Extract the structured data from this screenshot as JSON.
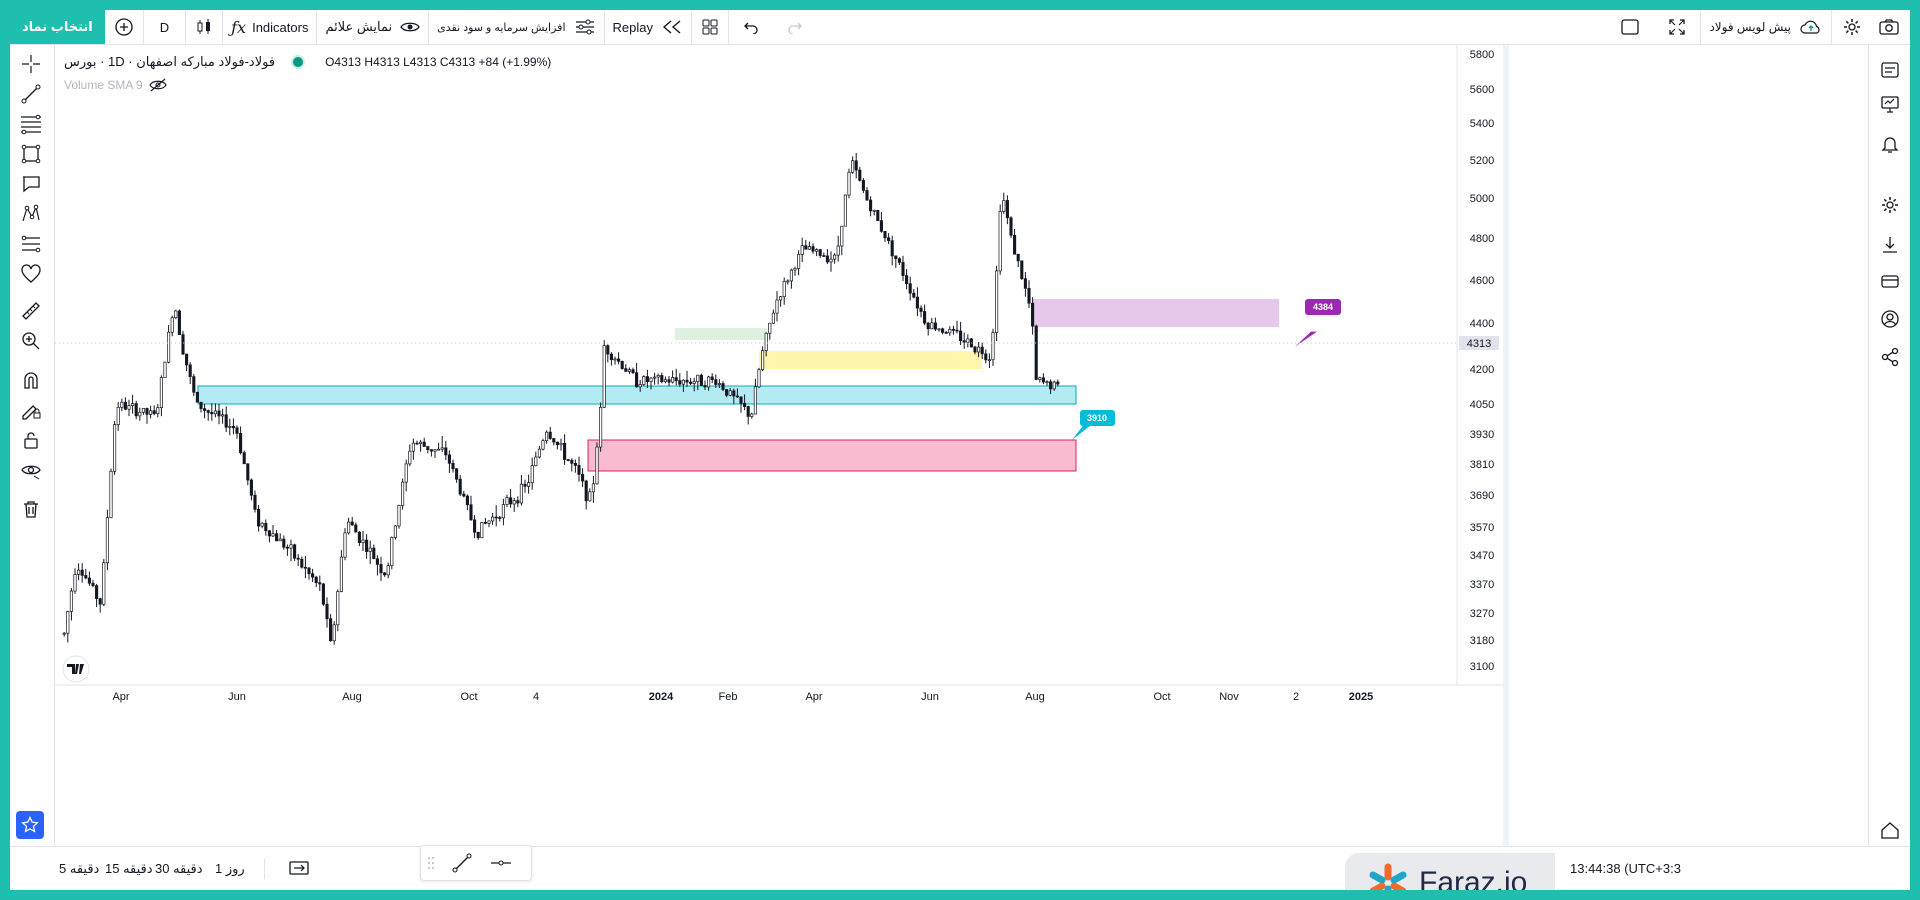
{
  "topbar": {
    "symbol_search": "انتخاب نماد",
    "interval": "D",
    "indicators": "Indicators",
    "show_signs": "نمایش علائم",
    "capital_increase": "افزایش سرمایه و سود نقدی",
    "replay": "Replay",
    "pre_open": "پیش لویس فولاد"
  },
  "legend": {
    "title": "فولاد-فولاد مبارکه اصفهان · 1D · بورس",
    "ohlc": "O4313 H4313 L4313 C4313 +84 (+1.99%)",
    "volume": "Volume SMA 9"
  },
  "price_axis": {
    "ticks": [
      "5800",
      "5600",
      "5400",
      "5200",
      "5000",
      "4800",
      "4600",
      "4400",
      "4200",
      "4050",
      "3930",
      "3810",
      "3690",
      "3570",
      "3470",
      "3370",
      "3270",
      "3180",
      "3100"
    ],
    "current_price": "4313"
  },
  "time_axis": {
    "ticks": [
      "Apr",
      "Jun",
      "Aug",
      "Oct",
      "4",
      "2024",
      "Feb",
      "Apr",
      "Jun",
      "Aug",
      "Oct",
      "Nov",
      "2",
      "2025"
    ]
  },
  "annotations": {
    "upper_label": "4384",
    "lower_label": "3910"
  },
  "colors": {
    "accent": "#1fbfb0",
    "cyan_zone": "#b2ebf2",
    "pink_zone": "#f8bbd0",
    "yellow_zone": "#fff59d",
    "lavender_zone": "#e1bee7",
    "green_zone": "#c8e6c9",
    "purple_label": "#9c27b0",
    "teal_label": "#00bcd4"
  },
  "bottombar": {
    "tf_5m": "5 دقیقه",
    "tf_15m": "15 دقیقه",
    "tf_30m": "30 دقیقه",
    "tf_1d": "1 روز",
    "clock": "13:44:38 (UTC+3:3"
  },
  "watermark": {
    "brand": "Faraz.io"
  },
  "icons": {
    "left_toolbar": [
      "crosshair-icon",
      "trend-line-icon",
      "fib-icon",
      "rectangle-icon",
      "callout-icon",
      "pattern-icon",
      "measure-icon",
      "heart-icon",
      "ruler-icon",
      "zoom-icon",
      "magnet-icon",
      "lock-pencil-icon",
      "lock-icon",
      "eye-icon",
      "trash-icon"
    ],
    "right_toolbar": [
      "watchlist-icon",
      "monitor-icon",
      "alert-icon",
      "settings-icon",
      "download-icon",
      "card-icon",
      "account-icon",
      "share-icon"
    ]
  }
}
